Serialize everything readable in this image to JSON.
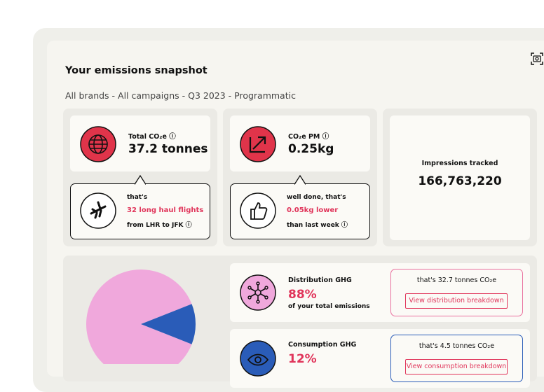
{
  "header": {
    "title": "Your emissions snapshot",
    "subtitle": "All brands - All campaigns - Q3 2023 - Programmatic"
  },
  "metrics": [
    {
      "label": "Total CO₂e",
      "value": "37.2 tonnes",
      "note": [
        "that's",
        "32 long haul flights",
        "from LHR to JFK"
      ]
    },
    {
      "label": "CO₂e PM",
      "value": "0.25kg",
      "note": [
        "well done, that's",
        "0.05kg lower",
        "than last week"
      ]
    },
    {
      "label": "Impressions tracked",
      "value": "166,763,220"
    }
  ],
  "chart_data": {
    "type": "pie",
    "categories": [
      "Distribution GHG",
      "Consumption GHG"
    ],
    "values": [
      88,
      12
    ],
    "value_labels": [
      "88%",
      "12%"
    ],
    "colors": [
      "#f0a8dc",
      "#2a5cb8"
    ]
  },
  "breakdown": [
    {
      "subtitle": "of your total emissions",
      "callout": "that's 32.7 tonnes CO₂e",
      "button": "View distribution breakdown"
    },
    {
      "callout": "that's 4.5 tonnes CO₂e",
      "button": "View consumption breakdown"
    }
  ]
}
